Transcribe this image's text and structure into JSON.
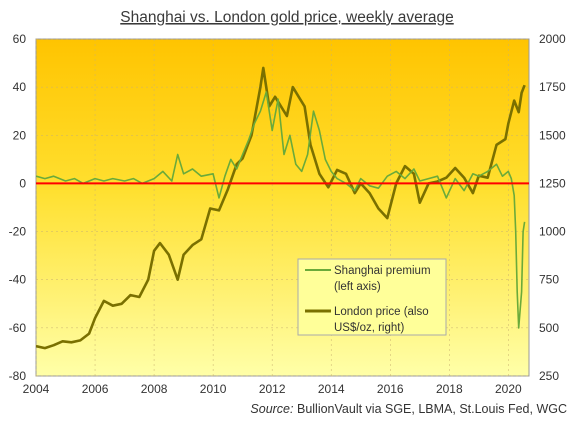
{
  "chart_data": {
    "type": "line",
    "title": "Shanghai vs. London gold price, weekly average",
    "source_label": "Source:",
    "source_text": "BullionVault via SGE, LBMA, St.Louis Fed, WGC",
    "x_range": [
      2004,
      2020.7
    ],
    "x_ticks": [
      "2004",
      "2006",
      "2008",
      "2010",
      "2012",
      "2014",
      "2016",
      "2018",
      "2020"
    ],
    "x_tick_values": [
      2004,
      2006,
      2008,
      2010,
      2012,
      2014,
      2016,
      2018,
      2020
    ],
    "y_left": {
      "range": [
        -80,
        60
      ],
      "ticks": [
        "-80",
        "-60",
        "-40",
        "-20",
        "0",
        "20",
        "40",
        "60"
      ]
    },
    "y_right": {
      "range": [
        250,
        2000
      ],
      "ticks": [
        "250",
        "500",
        "750",
        "1000",
        "1250",
        "1500",
        "1750",
        "2000"
      ]
    },
    "zero_line": 0,
    "legend": [
      {
        "line1": "Shanghai premium",
        "line2": "(left axis)"
      },
      {
        "line1": "London price (also",
        "line2": "US$/oz, right)"
      }
    ],
    "series": [
      {
        "name": "Shanghai premium (left axis)",
        "axis": "left",
        "color": "#6aaa3a",
        "points": [
          [
            2004.0,
            3
          ],
          [
            2004.3,
            2
          ],
          [
            2004.6,
            3
          ],
          [
            2005.0,
            1
          ],
          [
            2005.3,
            2
          ],
          [
            2005.6,
            0
          ],
          [
            2006.0,
            2
          ],
          [
            2006.3,
            1
          ],
          [
            2006.6,
            2
          ],
          [
            2007.0,
            1
          ],
          [
            2007.3,
            2
          ],
          [
            2007.6,
            0
          ],
          [
            2008.0,
            2
          ],
          [
            2008.3,
            5
          ],
          [
            2008.6,
            1
          ],
          [
            2008.8,
            12
          ],
          [
            2009.0,
            4
          ],
          [
            2009.3,
            6
          ],
          [
            2009.6,
            3
          ],
          [
            2010.0,
            4
          ],
          [
            2010.2,
            -6
          ],
          [
            2010.4,
            3
          ],
          [
            2010.6,
            10
          ],
          [
            2010.8,
            6
          ],
          [
            2011.0,
            12
          ],
          [
            2011.2,
            18
          ],
          [
            2011.4,
            25
          ],
          [
            2011.6,
            30
          ],
          [
            2011.8,
            38
          ],
          [
            2012.0,
            22
          ],
          [
            2012.2,
            35
          ],
          [
            2012.4,
            12
          ],
          [
            2012.6,
            20
          ],
          [
            2012.8,
            8
          ],
          [
            2013.0,
            5
          ],
          [
            2013.2,
            12
          ],
          [
            2013.4,
            30
          ],
          [
            2013.6,
            22
          ],
          [
            2013.8,
            10
          ],
          [
            2014.0,
            5
          ],
          [
            2014.2,
            2
          ],
          [
            2014.5,
            0
          ],
          [
            2014.8,
            -3
          ],
          [
            2015.0,
            2
          ],
          [
            2015.3,
            -1
          ],
          [
            2015.6,
            -2
          ],
          [
            2015.9,
            3
          ],
          [
            2016.2,
            5
          ],
          [
            2016.5,
            2
          ],
          [
            2016.8,
            6
          ],
          [
            2017.0,
            1
          ],
          [
            2017.3,
            2
          ],
          [
            2017.6,
            3
          ],
          [
            2017.9,
            -6
          ],
          [
            2018.2,
            2
          ],
          [
            2018.5,
            -3
          ],
          [
            2018.8,
            4
          ],
          [
            2019.0,
            3
          ],
          [
            2019.3,
            5
          ],
          [
            2019.6,
            8
          ],
          [
            2019.8,
            3
          ],
          [
            2020.0,
            5
          ],
          [
            2020.1,
            2
          ],
          [
            2020.2,
            -5
          ],
          [
            2020.25,
            -20
          ],
          [
            2020.3,
            -45
          ],
          [
            2020.35,
            -60
          ],
          [
            2020.45,
            -45
          ],
          [
            2020.5,
            -20
          ],
          [
            2020.55,
            -16
          ]
        ]
      },
      {
        "name": "London price (also US$/oz, right)",
        "axis": "right",
        "color": "#7a7000",
        "points": [
          [
            2004.0,
            405
          ],
          [
            2004.3,
            395
          ],
          [
            2004.6,
            410
          ],
          [
            2004.9,
            430
          ],
          [
            2005.2,
            425
          ],
          [
            2005.5,
            435
          ],
          [
            2005.8,
            470
          ],
          [
            2006.0,
            550
          ],
          [
            2006.3,
            640
          ],
          [
            2006.6,
            615
          ],
          [
            2006.9,
            625
          ],
          [
            2007.2,
            670
          ],
          [
            2007.5,
            660
          ],
          [
            2007.8,
            750
          ],
          [
            2008.0,
            900
          ],
          [
            2008.2,
            940
          ],
          [
            2008.5,
            880
          ],
          [
            2008.8,
            750
          ],
          [
            2009.0,
            880
          ],
          [
            2009.3,
            930
          ],
          [
            2009.6,
            960
          ],
          [
            2009.9,
            1120
          ],
          [
            2010.2,
            1110
          ],
          [
            2010.5,
            1220
          ],
          [
            2010.8,
            1350
          ],
          [
            2011.0,
            1380
          ],
          [
            2011.3,
            1500
          ],
          [
            2011.6,
            1750
          ],
          [
            2011.7,
            1850
          ],
          [
            2011.9,
            1650
          ],
          [
            2012.1,
            1700
          ],
          [
            2012.3,
            1650
          ],
          [
            2012.5,
            1600
          ],
          [
            2012.7,
            1750
          ],
          [
            2012.9,
            1700
          ],
          [
            2013.1,
            1650
          ],
          [
            2013.3,
            1450
          ],
          [
            2013.6,
            1300
          ],
          [
            2013.9,
            1230
          ],
          [
            2014.2,
            1320
          ],
          [
            2014.5,
            1300
          ],
          [
            2014.8,
            1200
          ],
          [
            2015.0,
            1250
          ],
          [
            2015.3,
            1200
          ],
          [
            2015.6,
            1120
          ],
          [
            2015.9,
            1070
          ],
          [
            2016.2,
            1250
          ],
          [
            2016.5,
            1340
          ],
          [
            2016.8,
            1300
          ],
          [
            2017.0,
            1150
          ],
          [
            2017.3,
            1250
          ],
          [
            2017.6,
            1260
          ],
          [
            2017.9,
            1280
          ],
          [
            2018.2,
            1330
          ],
          [
            2018.5,
            1280
          ],
          [
            2018.8,
            1200
          ],
          [
            2019.0,
            1290
          ],
          [
            2019.3,
            1280
          ],
          [
            2019.6,
            1450
          ],
          [
            2019.9,
            1480
          ],
          [
            2020.0,
            1560
          ],
          [
            2020.2,
            1680
          ],
          [
            2020.35,
            1620
          ],
          [
            2020.45,
            1720
          ],
          [
            2020.55,
            1760
          ]
        ]
      }
    ]
  }
}
